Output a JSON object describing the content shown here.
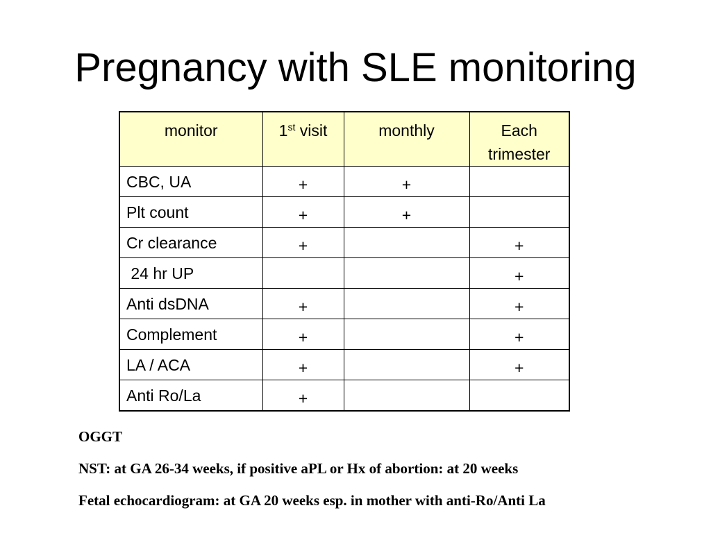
{
  "title": "Pregnancy with SLE monitoring",
  "table": {
    "headers": {
      "monitor": "monitor",
      "visit_number": "1",
      "visit_sup": "st",
      "visit_word": " visit",
      "monthly": "monthly",
      "each": "Each",
      "trimester": "trimester"
    },
    "rows": [
      {
        "label": "CBC, UA",
        "first": "+",
        "monthly": "+",
        "trimester": ""
      },
      {
        "label": "Plt count",
        "first": "+",
        "monthly": "+",
        "trimester": ""
      },
      {
        "label": "Cr clearance",
        "first": "+",
        "monthly": "",
        "trimester": "+"
      },
      {
        "label": " 24 hr UP",
        "first": "",
        "monthly": "",
        "trimester": "+"
      },
      {
        "label": "Anti dsDNA",
        "first": "+",
        "monthly": "",
        "trimester": "+"
      },
      {
        "label": "Complement",
        "first": "+",
        "monthly": "",
        "trimester": "+"
      },
      {
        "label": "LA / ACA",
        "first": "+",
        "monthly": "",
        "trimester": "+"
      },
      {
        "label": "Anti Ro/La",
        "first": "+",
        "monthly": "",
        "trimester": ""
      }
    ],
    "header_bg": "#ffffcc"
  },
  "notes": [
    "OGGT",
    "NST: at GA 26-34 weeks, if positive aPL or Hx of abortion: at 20 weeks",
    "Fetal echocardiogram: at GA 20 weeks esp. in mother with anti-Ro/Anti La"
  ]
}
